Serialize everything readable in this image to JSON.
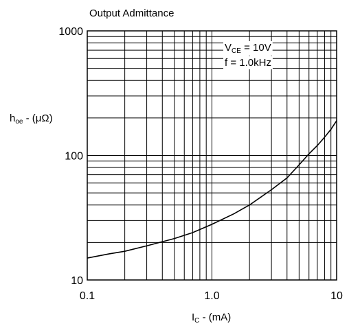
{
  "chart_data": {
    "type": "line",
    "title": "Output Admittance",
    "xlabel": {
      "main": "I",
      "sub": "C",
      "rest": " - (mA)"
    },
    "ylabel": {
      "main": "h",
      "sub": "oe",
      "rest": " - (μΩ)"
    },
    "x_scale": "log",
    "y_scale": "log",
    "xlim": [
      0.1,
      10
    ],
    "ylim": [
      10,
      1000
    ],
    "x_ticks": [
      {
        "value": 0.1,
        "label": "0.1"
      },
      {
        "value": 1,
        "label": "1.0"
      },
      {
        "value": 10,
        "label": "10"
      }
    ],
    "y_ticks": [
      {
        "value": 10,
        "label": "10"
      },
      {
        "value": 100,
        "label": "100"
      },
      {
        "value": 1000,
        "label": "1000"
      }
    ],
    "grid": true,
    "annotations": [
      {
        "main": "V",
        "sub": "CE",
        "rest": " = 10V"
      },
      {
        "main": "f = 1.0kHz",
        "sub": "",
        "rest": ""
      }
    ],
    "series": [
      {
        "x": [
          0.1,
          0.15,
          0.2,
          0.3,
          0.5,
          0.7,
          1.0,
          1.5,
          2.0,
          3.0,
          4.0,
          5.0,
          6.0,
          7.0,
          8.0,
          9.0,
          10.0
        ],
        "y": [
          15,
          16.2,
          17,
          18.8,
          21.5,
          24,
          28,
          34,
          40,
          53,
          66,
          84,
          103,
          120,
          140,
          162,
          190
        ]
      }
    ]
  }
}
